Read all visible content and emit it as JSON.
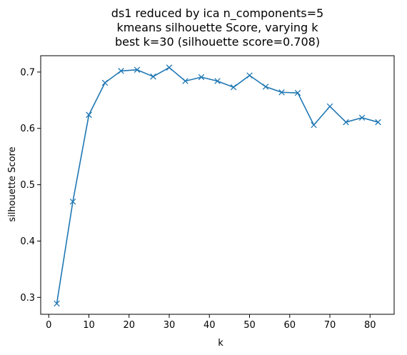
{
  "chart_data": {
    "type": "line",
    "title_lines": [
      "ds1 reduced by ica n_components=5",
      "kmeans silhouette Score, varying k",
      "best k=30 (silhouette score=0.708)"
    ],
    "xlabel": "k",
    "ylabel": "silhouette Score",
    "xlim": [
      -2.0,
      86.0
    ],
    "ylim": [
      0.27,
      0.729
    ],
    "xticks": [
      0,
      10,
      20,
      30,
      40,
      50,
      60,
      70,
      80
    ],
    "yticks": [
      0.3,
      0.4,
      0.5,
      0.6,
      0.7
    ],
    "xtick_labels": [
      "0",
      "10",
      "20",
      "30",
      "40",
      "50",
      "60",
      "70",
      "80"
    ],
    "ytick_labels": [
      "0.3",
      "0.4",
      "0.5",
      "0.6",
      "0.7"
    ],
    "series": [
      {
        "color": "#1f77b4",
        "marker": "x",
        "x": [
          2,
          6,
          10,
          14,
          18,
          22,
          26,
          30,
          34,
          38,
          42,
          46,
          50,
          54,
          58,
          62,
          66,
          70,
          74,
          78,
          82
        ],
        "y": [
          0.289,
          0.47,
          0.624,
          0.681,
          0.702,
          0.704,
          0.692,
          0.708,
          0.684,
          0.691,
          0.684,
          0.673,
          0.694,
          0.674,
          0.664,
          0.663,
          0.606,
          0.639,
          0.611,
          0.619,
          0.611
        ]
      }
    ],
    "grid": false,
    "legend": "none"
  }
}
